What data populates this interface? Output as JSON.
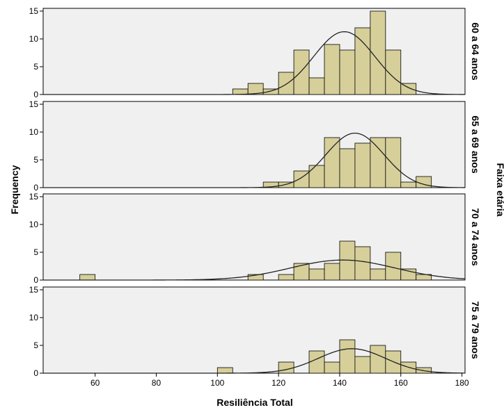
{
  "chart_data": {
    "type": "histogram",
    "xlabel": "Resiliência Total",
    "ylabel": "Frequency",
    "facet_title": "Faixa etária",
    "xlim": [
      43,
      181
    ],
    "x_ticks": [
      60,
      80,
      100,
      120,
      140,
      160,
      180
    ],
    "ylim": [
      0,
      15.5
    ],
    "y_ticks": [
      0,
      5,
      10,
      15
    ],
    "bin_width": 5,
    "grid": false,
    "bar_color": "#d6cf9a",
    "panel_bg": "#f0f0f0",
    "panels": [
      {
        "label": "60 a 64 anos",
        "bins": [
          {
            "start": 105,
            "count": 1
          },
          {
            "start": 110,
            "count": 2
          },
          {
            "start": 115,
            "count": 1
          },
          {
            "start": 120,
            "count": 4
          },
          {
            "start": 125,
            "count": 8
          },
          {
            "start": 130,
            "count": 3
          },
          {
            "start": 135,
            "count": 9
          },
          {
            "start": 140,
            "count": 8
          },
          {
            "start": 145,
            "count": 12
          },
          {
            "start": 150,
            "count": 15
          },
          {
            "start": 155,
            "count": 8
          },
          {
            "start": 160,
            "count": 2
          }
        ],
        "normal_curve": {
          "mean": 141.5,
          "sd": 10,
          "peak": 11.3
        }
      },
      {
        "label": "65 a 69 anos",
        "bins": [
          {
            "start": 115,
            "count": 1
          },
          {
            "start": 120,
            "count": 1
          },
          {
            "start": 125,
            "count": 3
          },
          {
            "start": 130,
            "count": 4
          },
          {
            "start": 135,
            "count": 9
          },
          {
            "start": 140,
            "count": 7
          },
          {
            "start": 145,
            "count": 8
          },
          {
            "start": 150,
            "count": 9
          },
          {
            "start": 155,
            "count": 9
          },
          {
            "start": 160,
            "count": 1
          },
          {
            "start": 165,
            "count": 2
          }
        ],
        "normal_curve": {
          "mean": 145,
          "sd": 9.5,
          "peak": 9.8
        }
      },
      {
        "label": "70 a 74 anos",
        "bins": [
          {
            "start": 55,
            "count": 1
          },
          {
            "start": 110,
            "count": 1
          },
          {
            "start": 120,
            "count": 1
          },
          {
            "start": 125,
            "count": 3
          },
          {
            "start": 130,
            "count": 2
          },
          {
            "start": 135,
            "count": 3
          },
          {
            "start": 140,
            "count": 7
          },
          {
            "start": 145,
            "count": 6
          },
          {
            "start": 150,
            "count": 2
          },
          {
            "start": 155,
            "count": 5
          },
          {
            "start": 160,
            "count": 2
          },
          {
            "start": 165,
            "count": 1
          }
        ],
        "normal_curve": {
          "mean": 141,
          "sd": 17,
          "peak": 3.6
        }
      },
      {
        "label": "75 a 79 anos",
        "bins": [
          {
            "start": 100,
            "count": 1
          },
          {
            "start": 120,
            "count": 2
          },
          {
            "start": 130,
            "count": 4
          },
          {
            "start": 135,
            "count": 2
          },
          {
            "start": 140,
            "count": 6
          },
          {
            "start": 145,
            "count": 3
          },
          {
            "start": 150,
            "count": 5
          },
          {
            "start": 155,
            "count": 4
          },
          {
            "start": 160,
            "count": 2
          },
          {
            "start": 165,
            "count": 1
          }
        ],
        "normal_curve": {
          "mean": 144,
          "sd": 11,
          "peak": 4.4
        }
      }
    ]
  }
}
